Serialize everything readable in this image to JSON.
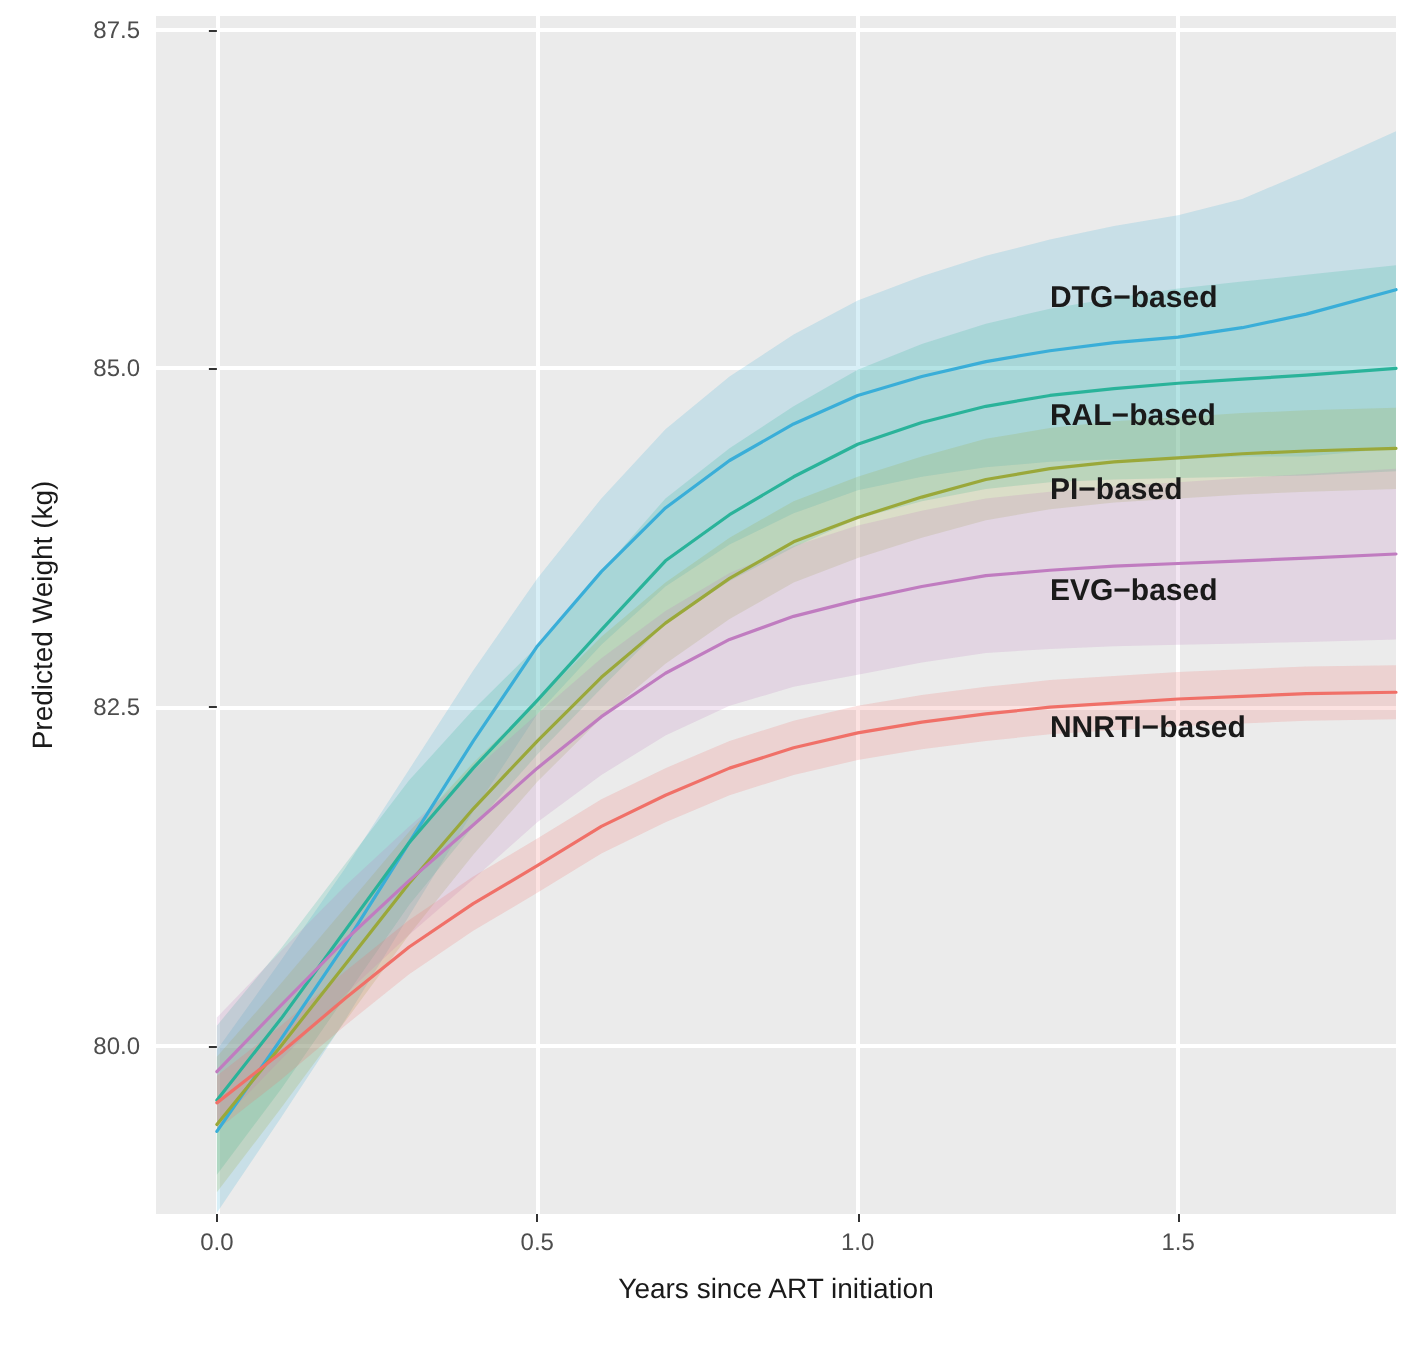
{
  "chart_data": {
    "type": "line",
    "xlabel": "Years since ART initiation",
    "ylabel": "Predicted Weight (kg)",
    "x": [
      0,
      0.1,
      0.2,
      0.3,
      0.4,
      0.5,
      0.6,
      0.7,
      0.8,
      0.9,
      1.0,
      1.1,
      1.2,
      1.3,
      1.4,
      1.5,
      1.6,
      1.7,
      1.84
    ],
    "xlim": [
      -0.095,
      1.84
    ],
    "ylim": [
      78.76,
      87.6
    ],
    "xticks": [
      {
        "value": 0,
        "label": "0.0"
      },
      {
        "value": 0.5,
        "label": "0.5"
      },
      {
        "value": 1,
        "label": "1.0"
      },
      {
        "value": 1.5,
        "label": "1.5"
      }
    ],
    "yticks": [
      {
        "value": 80,
        "label": "80.0"
      },
      {
        "value": 82.5,
        "label": "82.5"
      },
      {
        "value": 85,
        "label": "85.0"
      },
      {
        "value": 87.5,
        "label": "87.5"
      }
    ],
    "grid": true,
    "legend": false,
    "marker": "none",
    "line_style": "solid",
    "series": [
      {
        "name": "DTG−based",
        "color": "#3aaed8",
        "values": [
          79.37,
          80.05,
          80.75,
          81.5,
          82.25,
          82.95,
          83.5,
          83.97,
          84.32,
          84.59,
          84.8,
          84.94,
          85.05,
          85.13,
          85.19,
          85.23,
          85.3,
          85.4,
          85.58
        ],
        "lower": [
          78.77,
          79.47,
          80.19,
          80.96,
          81.73,
          82.45,
          82.96,
          83.39,
          83.7,
          83.93,
          84.1,
          84.2,
          84.27,
          84.31,
          84.33,
          84.33,
          84.35,
          84.35,
          84.41
        ],
        "upper": [
          79.97,
          80.63,
          81.31,
          82.04,
          82.77,
          83.45,
          84.04,
          84.55,
          84.94,
          85.25,
          85.5,
          85.68,
          85.83,
          85.95,
          86.05,
          86.13,
          86.25,
          86.45,
          86.75
        ]
      },
      {
        "name": "RAL−based",
        "color": "#2ab39a",
        "values": [
          79.6,
          80.2,
          80.85,
          81.5,
          82.05,
          82.55,
          83.07,
          83.58,
          83.92,
          84.2,
          84.44,
          84.6,
          84.72,
          84.8,
          84.85,
          84.89,
          84.92,
          84.95,
          85.0
        ],
        "lower": [
          79.05,
          79.68,
          80.36,
          81.04,
          81.62,
          82.15,
          82.64,
          83.12,
          83.43,
          83.68,
          83.89,
          84.02,
          84.11,
          84.16,
          84.18,
          84.19,
          84.2,
          84.21,
          84.24
        ],
        "upper": [
          80.15,
          80.72,
          81.34,
          81.96,
          82.48,
          82.95,
          83.5,
          84.04,
          84.41,
          84.72,
          84.99,
          85.18,
          85.33,
          85.44,
          85.52,
          85.59,
          85.64,
          85.69,
          85.76
        ]
      },
      {
        "name": "PI−based",
        "color": "#9aa83a",
        "values": [
          79.42,
          80.0,
          80.6,
          81.2,
          81.75,
          82.25,
          82.72,
          83.12,
          83.45,
          83.72,
          83.9,
          84.05,
          84.18,
          84.26,
          84.31,
          84.34,
          84.37,
          84.39,
          84.41
        ],
        "lower": [
          78.92,
          79.54,
          80.18,
          80.82,
          81.41,
          81.95,
          82.42,
          82.82,
          83.15,
          83.42,
          83.6,
          83.75,
          83.88,
          83.96,
          84.01,
          84.04,
          84.07,
          84.09,
          84.11
        ],
        "upper": [
          79.92,
          80.46,
          81.02,
          81.58,
          82.09,
          82.55,
          83.02,
          83.42,
          83.75,
          84.02,
          84.2,
          84.35,
          84.48,
          84.56,
          84.61,
          84.64,
          84.67,
          84.69,
          84.71
        ]
      },
      {
        "name": "EVG−based",
        "color": "#c07cc0",
        "values": [
          79.81,
          80.3,
          80.78,
          81.22,
          81.63,
          82.05,
          82.43,
          82.75,
          83.0,
          83.17,
          83.29,
          83.39,
          83.47,
          83.51,
          83.54,
          83.56,
          83.58,
          83.6,
          83.63
        ],
        "lower": [
          79.41,
          79.9,
          80.38,
          80.82,
          81.23,
          81.65,
          82.0,
          82.29,
          82.51,
          82.65,
          82.74,
          82.83,
          82.9,
          82.93,
          82.95,
          82.96,
          82.97,
          82.98,
          83.0
        ],
        "upper": [
          80.21,
          80.7,
          81.18,
          81.62,
          82.03,
          82.45,
          82.86,
          83.21,
          83.49,
          83.69,
          83.84,
          83.95,
          84.04,
          84.09,
          84.13,
          84.16,
          84.19,
          84.22,
          84.26
        ]
      },
      {
        "name": "NNRTI−based",
        "color": "#f07068",
        "values": [
          79.58,
          79.95,
          80.35,
          80.73,
          81.05,
          81.33,
          81.62,
          81.85,
          82.05,
          82.2,
          82.31,
          82.39,
          82.45,
          82.5,
          82.53,
          82.56,
          82.58,
          82.6,
          82.61
        ],
        "lower": [
          79.38,
          79.75,
          80.15,
          80.53,
          80.85,
          81.13,
          81.42,
          81.65,
          81.85,
          82.0,
          82.11,
          82.19,
          82.25,
          82.3,
          82.33,
          82.36,
          82.38,
          82.4,
          82.41
        ],
        "upper": [
          79.78,
          80.15,
          80.55,
          80.93,
          81.25,
          81.53,
          81.82,
          82.05,
          82.25,
          82.4,
          82.51,
          82.59,
          82.65,
          82.7,
          82.73,
          82.76,
          82.78,
          82.8,
          82.81
        ]
      }
    ]
  }
}
